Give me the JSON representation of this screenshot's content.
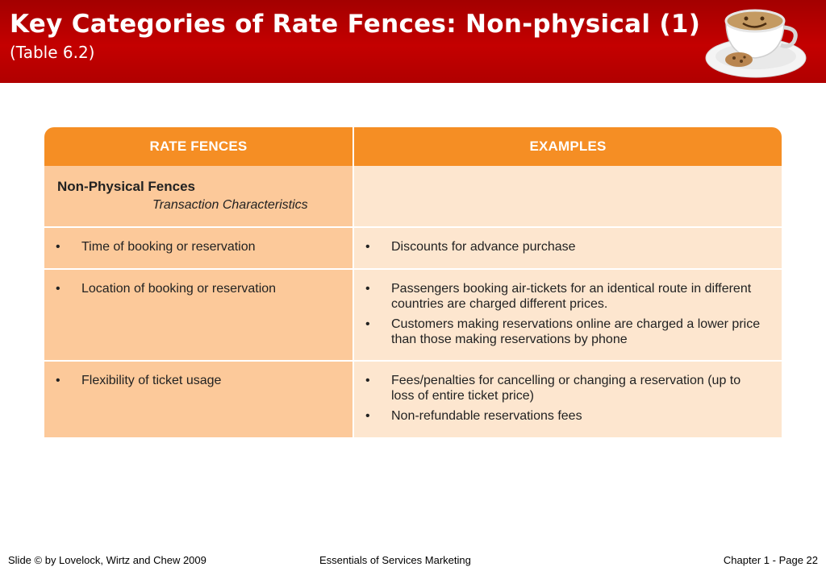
{
  "header": {
    "title": "Key Categories of Rate Fences: Non-physical (1)",
    "subtitle": "(Table 6.2)",
    "logo_icon": "coffee-cup-smiley-icon"
  },
  "table": {
    "columns": [
      "RATE FENCES",
      "EXAMPLES"
    ],
    "section": {
      "title": "Non-Physical Fences",
      "subtitle": "Transaction Characteristics"
    },
    "bullet": "•",
    "rows": [
      {
        "fence": "Time of booking or reservation",
        "examples": [
          "Discounts for advance purchase"
        ]
      },
      {
        "fence": "Location of booking or reservation",
        "examples": [
          "Passengers booking air-tickets for an identical route in different countries are charged different prices.",
          "Customers making reservations online are charged a lower price than those making reservations by phone"
        ]
      },
      {
        "fence": "Flexibility of ticket usage",
        "examples": [
          "Fees/penalties for cancelling or changing a reservation (up to loss of entire ticket price)",
          "Non-refundable reservations fees"
        ]
      }
    ],
    "colors": {
      "header": "#f58e24",
      "left_cell": "#fcc99a",
      "right_cell": "#fde6cf"
    }
  },
  "footer": {
    "left": "Slide © by Lovelock, Wirtz and Chew 2009",
    "center": "Essentials of Services Marketing",
    "right": "Chapter 1 - Page 22"
  }
}
